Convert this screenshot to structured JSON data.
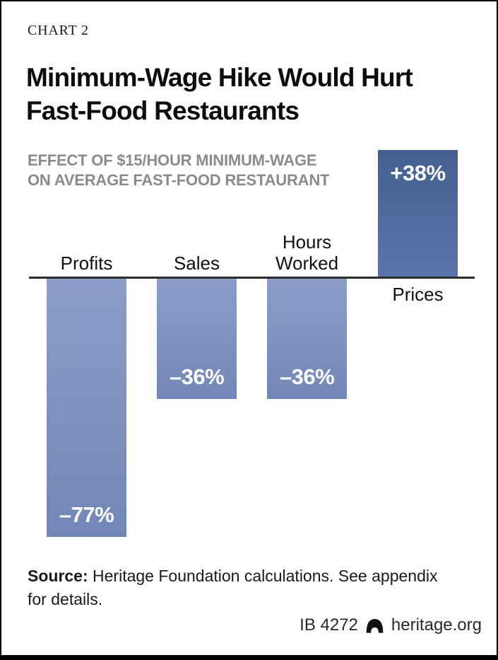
{
  "page": {
    "chart_label": "CHART 2",
    "title_line1": "Minimum-Wage Hike Would Hurt",
    "title_line2": "Fast-Food Restaurants",
    "subtitle_line1": "EFFECT OF $15/HOUR MINIMUM-WAGE",
    "subtitle_line2": "ON AVERAGE FAST-FOOD RESTAURANT"
  },
  "chart_data": {
    "type": "bar",
    "title": "Minimum-Wage Hike Would Hurt Fast-Food Restaurants",
    "subtitle": "Effect of $15/hour minimum-wage on average fast-food restaurant",
    "categories": [
      "Profits",
      "Sales",
      "Hours Worked",
      "Prices"
    ],
    "values": [
      -77,
      -36,
      -36,
      38
    ],
    "value_labels": [
      "–77%",
      "–36%",
      "–36%",
      "+38%"
    ],
    "unit": "percent",
    "xlabel": "",
    "ylabel": "",
    "ylim": [
      -80,
      40
    ],
    "grid": false,
    "legend": false,
    "baseline": 0,
    "axis_color": "#2d2d2d",
    "negative_bar_gradient_top": "#8d9dc8",
    "negative_bar_gradient_bottom": "#7287b7",
    "positive_bar_gradient_top": "#44608f",
    "positive_bar_gradient_bottom": "#5974ac",
    "value_label_color": "#ffffff"
  },
  "source": {
    "label": "Source:",
    "line1": " Heritage Foundation calculations. See appendix",
    "line2": "for details."
  },
  "footer": {
    "report_id": "IB 4272",
    "logo_icon": "heritage-bell-icon",
    "site": "heritage.org"
  },
  "colors": {
    "background": "#ffffff",
    "border": "#000000",
    "title": "#0d0d0d",
    "subtitle": "#8b8b8b",
    "category_label": "#111111"
  }
}
